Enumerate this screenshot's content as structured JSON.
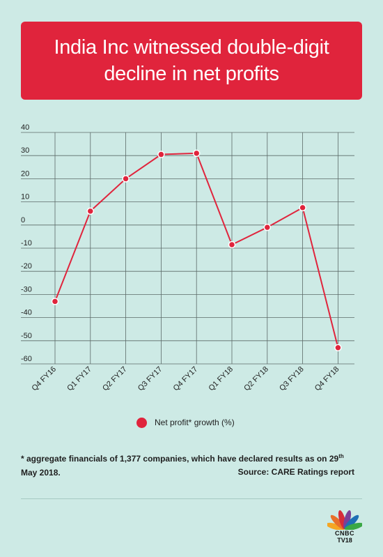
{
  "title": "India Inc witnessed double-digit decline in net profits",
  "chart_data": {
    "type": "line",
    "categories": [
      "Q4 FY16",
      "Q1 FY17",
      "Q2 FY17",
      "Q3 FY17",
      "Q4 FY17",
      "Q1 FY18",
      "Q2 FY18",
      "Q3 FY18",
      "Q4 FY18"
    ],
    "series": [
      {
        "name": "Net profit* growth (%)",
        "values": [
          -33,
          6,
          20,
          30.5,
          31,
          -8.5,
          -1,
          7.5,
          -53
        ]
      }
    ],
    "yticks": [
      "40",
      "30",
      "20",
      "10",
      "0",
      "-10",
      "-20",
      "-30",
      "-40",
      "-50",
      "-60"
    ],
    "ylim": [
      -60,
      40
    ],
    "grid": true,
    "legend_position": "bottom-center",
    "colors": {
      "line": "#e0243c",
      "marker": "#e0243c",
      "grid": "#5c6a68",
      "background": "#cdeae5"
    }
  },
  "legend": {
    "label": "Net profit* growth (%)"
  },
  "footnote": {
    "star": "*",
    "text_before": " aggregate financials of 1,377 companies, which have declared results as on 29",
    "superscript": "th",
    "text_after": " May 2018."
  },
  "source": "Source: CARE Ratings report",
  "logo": {
    "line1": "CNBC",
    "line2": "TV18"
  }
}
